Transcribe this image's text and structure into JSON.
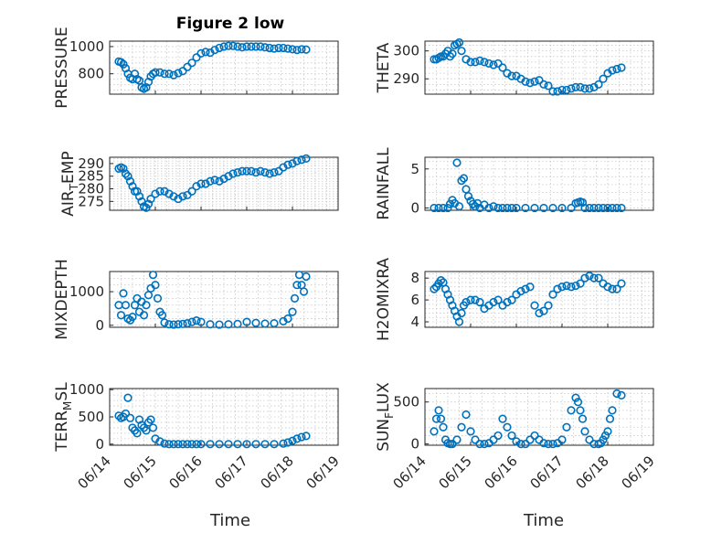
{
  "title": "Figure 2 low",
  "marker_color": "#0072BD",
  "chart_data": [
    {
      "type": "scatter",
      "ylabel": "PRESSURE",
      "ylim": [
        650,
        1040
      ],
      "yticks": [
        800,
        1000
      ],
      "xlim": [
        0,
        5
      ],
      "xtick_labels": [],
      "grid": true,
      "x": [
        0.2,
        0.25,
        0.3,
        0.35,
        0.4,
        0.45,
        0.5,
        0.55,
        0.6,
        0.65,
        0.7,
        0.75,
        0.8,
        0.85,
        0.9,
        0.95,
        1.0,
        1.1,
        1.2,
        1.3,
        1.4,
        1.5,
        1.6,
        1.7,
        1.8,
        1.9,
        2.0,
        2.1,
        2.2,
        2.3,
        2.4,
        2.5,
        2.6,
        2.7,
        2.8,
        2.9,
        3.0,
        3.1,
        3.2,
        3.3,
        3.4,
        3.5,
        3.6,
        3.7,
        3.8,
        3.9,
        4.0,
        4.1,
        4.2,
        4.3
      ],
      "y": [
        890,
        885,
        870,
        840,
        800,
        770,
        760,
        800,
        760,
        750,
        700,
        690,
        700,
        740,
        780,
        800,
        810,
        810,
        800,
        800,
        790,
        805,
        820,
        850,
        880,
        920,
        950,
        960,
        955,
        975,
        990,
        1000,
        1005,
        1005,
        1000,
        995,
        1000,
        1000,
        1000,
        1000,
        995,
        990,
        985,
        990,
        990,
        985,
        980,
        975,
        980,
        978
      ]
    },
    {
      "type": "scatter",
      "ylabel": "THETA",
      "ylim": [
        284.5,
        303.5
      ],
      "yticks": [
        290,
        300
      ],
      "xlim": [
        0,
        5
      ],
      "xtick_labels": [],
      "grid": true,
      "x": [
        0.2,
        0.25,
        0.3,
        0.35,
        0.4,
        0.45,
        0.5,
        0.55,
        0.6,
        0.65,
        0.7,
        0.75,
        0.8,
        0.9,
        1.0,
        1.1,
        1.2,
        1.3,
        1.4,
        1.5,
        1.6,
        1.7,
        1.8,
        1.9,
        2.0,
        2.1,
        2.2,
        2.3,
        2.4,
        2.5,
        2.6,
        2.7,
        2.8,
        2.9,
        3.0,
        3.1,
        3.2,
        3.3,
        3.4,
        3.5,
        3.6,
        3.7,
        3.8,
        3.9,
        4.0,
        4.1,
        4.2,
        4.3
      ],
      "y": [
        297,
        297,
        297.5,
        298,
        298,
        299,
        300,
        298,
        299,
        302,
        302.5,
        303,
        300,
        297,
        296,
        296,
        296.5,
        296,
        295.5,
        295,
        295.5,
        294,
        292,
        291,
        291,
        290,
        289,
        288.5,
        289,
        289.5,
        288,
        287.5,
        285.5,
        285.5,
        286,
        286,
        286.5,
        287,
        287,
        286.5,
        286.5,
        287,
        288,
        290,
        292,
        293,
        293.5,
        294
      ]
    },
    {
      "type": "scatter",
      "ylabel": "AIR_TEMP",
      "ylim": [
        271.5,
        292.5
      ],
      "yticks": [
        275,
        280,
        285,
        290
      ],
      "xlim": [
        0,
        5
      ],
      "xtick_labels": [],
      "grid": true,
      "x": [
        0.2,
        0.25,
        0.3,
        0.35,
        0.4,
        0.45,
        0.5,
        0.55,
        0.6,
        0.65,
        0.7,
        0.75,
        0.8,
        0.85,
        0.9,
        1.0,
        1.1,
        1.2,
        1.3,
        1.4,
        1.5,
        1.6,
        1.7,
        1.8,
        1.9,
        2.0,
        2.1,
        2.2,
        2.3,
        2.4,
        2.5,
        2.6,
        2.7,
        2.8,
        2.9,
        3.0,
        3.1,
        3.2,
        3.3,
        3.4,
        3.5,
        3.6,
        3.7,
        3.8,
        3.9,
        4.0,
        4.1,
        4.2,
        4.3
      ],
      "y": [
        288,
        288.5,
        288,
        286,
        285,
        283,
        281,
        279,
        279,
        277,
        275,
        273,
        272.5,
        274,
        276,
        278,
        279,
        279,
        278,
        277,
        276,
        277,
        277.5,
        279,
        281,
        282,
        282,
        283,
        283.5,
        283,
        284,
        285,
        286,
        286.5,
        287,
        287,
        287,
        286.5,
        287,
        286.5,
        286,
        286.5,
        287,
        288.5,
        289.5,
        290,
        291,
        291.5,
        292
      ]
    },
    {
      "type": "scatter",
      "ylabel": "RAINFALL",
      "ylim": [
        -0.3,
        6.5
      ],
      "yticks": [
        0,
        5
      ],
      "xlim": [
        0,
        5
      ],
      "xtick_labels": [],
      "grid": true,
      "x": [
        0.2,
        0.3,
        0.4,
        0.5,
        0.55,
        0.6,
        0.65,
        0.7,
        0.75,
        0.8,
        0.85,
        0.9,
        0.95,
        1.0,
        1.05,
        1.1,
        1.15,
        1.2,
        1.3,
        1.4,
        1.5,
        1.6,
        1.7,
        1.8,
        1.9,
        2.0,
        2.2,
        2.4,
        2.6,
        2.8,
        3.0,
        3.2,
        3.3,
        3.35,
        3.4,
        3.45,
        3.5,
        3.6,
        3.7,
        3.8,
        3.9,
        4.0,
        4.1,
        4.2,
        4.3
      ],
      "y": [
        0,
        0,
        0,
        0,
        0.5,
        1,
        0.6,
        5.8,
        0.2,
        3.5,
        3.8,
        2.4,
        1.5,
        0.9,
        0.5,
        0.2,
        0.6,
        0,
        0.4,
        0,
        0.2,
        0,
        0,
        0,
        0,
        0,
        0,
        0,
        0,
        0,
        0,
        0,
        0.6,
        0.7,
        0.8,
        0.7,
        0,
        0,
        0,
        0,
        0,
        0,
        0,
        0,
        0
      ]
    },
    {
      "type": "scatter",
      "ylabel": "MIXDEPTH",
      "ylim": [
        -60,
        1600
      ],
      "yticks": [
        0,
        1000
      ],
      "xlim": [
        0,
        5
      ],
      "xtick_labels": [],
      "grid": true,
      "x": [
        0.2,
        0.25,
        0.3,
        0.35,
        0.4,
        0.45,
        0.5,
        0.55,
        0.6,
        0.65,
        0.7,
        0.75,
        0.8,
        0.85,
        0.9,
        0.95,
        1.0,
        1.05,
        1.1,
        1.15,
        1.2,
        1.3,
        1.4,
        1.5,
        1.6,
        1.7,
        1.8,
        1.9,
        2.0,
        2.2,
        2.4,
        2.6,
        2.8,
        3.0,
        3.2,
        3.4,
        3.6,
        3.8,
        3.9,
        4.0,
        4.05,
        4.1,
        4.15,
        4.2,
        4.25,
        4.3
      ],
      "y": [
        600,
        300,
        950,
        600,
        200,
        150,
        250,
        600,
        800,
        400,
        700,
        300,
        600,
        900,
        1100,
        1500,
        1200,
        800,
        400,
        300,
        80,
        30,
        20,
        30,
        40,
        60,
        100,
        140,
        100,
        30,
        20,
        30,
        40,
        100,
        70,
        50,
        60,
        120,
        200,
        400,
        800,
        1200,
        1500,
        1200,
        1000,
        1450
      ]
    },
    {
      "type": "scatter",
      "ylabel": "H2OMIXRA",
      "ylim": [
        3.5,
        8.6
      ],
      "yticks": [
        4,
        6,
        8
      ],
      "xlim": [
        0,
        5
      ],
      "xtick_labels": [],
      "grid": true,
      "x": [
        0.2,
        0.25,
        0.3,
        0.35,
        0.4,
        0.45,
        0.5,
        0.55,
        0.6,
        0.65,
        0.7,
        0.75,
        0.8,
        0.85,
        0.9,
        1.0,
        1.1,
        1.2,
        1.3,
        1.4,
        1.5,
        1.6,
        1.7,
        1.8,
        1.9,
        2.0,
        2.1,
        2.2,
        2.3,
        2.4,
        2.5,
        2.6,
        2.7,
        2.8,
        2.9,
        3.0,
        3.1,
        3.2,
        3.3,
        3.4,
        3.5,
        3.6,
        3.7,
        3.8,
        3.9,
        4.0,
        4.1,
        4.2,
        4.3
      ],
      "y": [
        7,
        7.2,
        7.5,
        7.8,
        7.6,
        7,
        6.5,
        6,
        5.5,
        5,
        4.5,
        4,
        4.8,
        5.5,
        5.8,
        6,
        6,
        5.8,
        5.2,
        5.5,
        5.8,
        6,
        5.5,
        5.8,
        6,
        6.5,
        6.8,
        7,
        7.2,
        5.5,
        4.8,
        5,
        5.5,
        6.5,
        7,
        7.2,
        7.3,
        7.2,
        7.3,
        7.5,
        8,
        8.2,
        8,
        8,
        7.5,
        7.2,
        7,
        7,
        7.5
      ]
    },
    {
      "type": "scatter",
      "ylabel": "TERR_MSL",
      "ylim": [
        -20,
        1020
      ],
      "yticks": [
        0,
        500,
        1000
      ],
      "xlim": [
        0,
        5
      ],
      "xtick_labels": [
        "06/14",
        "06/15",
        "06/16",
        "06/17",
        "06/18",
        "06/19"
      ],
      "xlabel": "Time",
      "grid": true,
      "x": [
        0.2,
        0.25,
        0.3,
        0.35,
        0.4,
        0.45,
        0.5,
        0.55,
        0.6,
        0.65,
        0.7,
        0.75,
        0.8,
        0.85,
        0.9,
        0.95,
        1.0,
        1.1,
        1.2,
        1.3,
        1.4,
        1.5,
        1.6,
        1.7,
        1.8,
        1.9,
        2.0,
        2.2,
        2.4,
        2.6,
        2.8,
        3.0,
        3.2,
        3.4,
        3.6,
        3.8,
        3.9,
        4.0,
        4.1,
        4.2,
        4.3
      ],
      "y": [
        520,
        480,
        500,
        560,
        850,
        480,
        300,
        250,
        200,
        450,
        350,
        300,
        250,
        400,
        450,
        300,
        100,
        50,
        10,
        0,
        0,
        0,
        0,
        0,
        0,
        0,
        0,
        0,
        0,
        0,
        0,
        0,
        0,
        0,
        0,
        10,
        30,
        60,
        100,
        130,
        150
      ]
    },
    {
      "type": "scatter",
      "ylabel": "SUN_FLUX",
      "ylim": [
        -15,
        660
      ],
      "yticks": [
        0,
        500
      ],
      "xlim": [
        0,
        5
      ],
      "xtick_labels": [
        "06/14",
        "06/15",
        "06/16",
        "06/17",
        "06/18",
        "06/19"
      ],
      "xlabel": "Time",
      "grid": true,
      "x": [
        0.2,
        0.25,
        0.3,
        0.35,
        0.4,
        0.45,
        0.5,
        0.55,
        0.6,
        0.7,
        0.8,
        0.9,
        1.0,
        1.1,
        1.2,
        1.3,
        1.4,
        1.5,
        1.6,
        1.7,
        1.8,
        1.9,
        2.0,
        2.1,
        2.2,
        2.3,
        2.4,
        2.5,
        2.6,
        2.7,
        2.8,
        2.9,
        3.0,
        3.1,
        3.2,
        3.3,
        3.35,
        3.4,
        3.45,
        3.5,
        3.6,
        3.7,
        3.8,
        3.85,
        3.9,
        3.95,
        4.0,
        4.05,
        4.1,
        4.2,
        4.3
      ],
      "y": [
        150,
        300,
        400,
        300,
        200,
        50,
        10,
        0,
        0,
        50,
        200,
        350,
        150,
        50,
        0,
        0,
        10,
        50,
        100,
        300,
        200,
        100,
        30,
        0,
        0,
        50,
        100,
        50,
        10,
        0,
        0,
        10,
        50,
        200,
        400,
        550,
        500,
        400,
        300,
        150,
        50,
        0,
        0,
        10,
        50,
        100,
        150,
        300,
        400,
        600,
        580
      ]
    }
  ]
}
